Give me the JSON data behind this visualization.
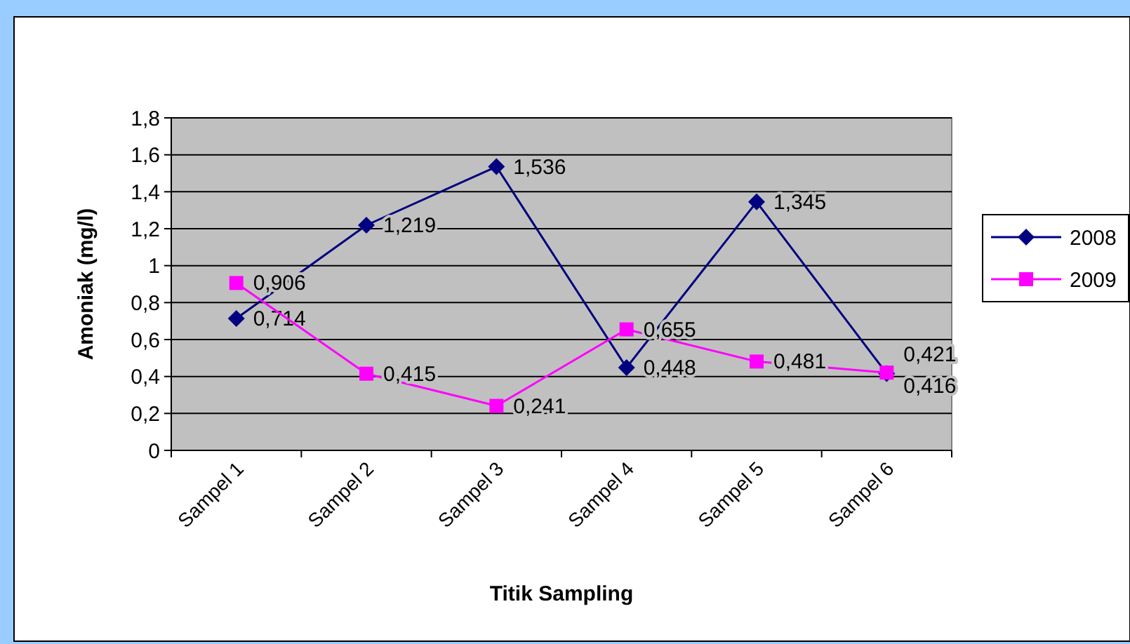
{
  "chart_data": {
    "type": "line",
    "xlabel": "Titik Sampling",
    "ylabel": "Amoniak (mg/l)",
    "categories": [
      "Sampel 1",
      "Sampel 2",
      "Sampel 3",
      "Sampel 4",
      "Sampel 5",
      "Sampel 6"
    ],
    "series": [
      {
        "name": "2008",
        "color": "#000080",
        "marker": "diamond",
        "values": [
          0.714,
          1.219,
          1.536,
          0.448,
          1.345,
          0.416
        ],
        "value_labels": [
          "0,714",
          "1,219",
          "1,536",
          "0,448",
          "1,345",
          "0,416"
        ]
      },
      {
        "name": "2009",
        "color": "#ff00ff",
        "marker": "square",
        "values": [
          0.906,
          0.415,
          0.241,
          0.655,
          0.481,
          0.421
        ],
        "value_labels": [
          "0,906",
          "0,415",
          "0,241",
          "0,655",
          "0,481",
          "0,421"
        ]
      }
    ],
    "ylim": [
      0,
      1.8
    ],
    "yticks": [
      0,
      {
        "value": 0.2,
        "label": "0,2"
      },
      {
        "value": 0.4,
        "label": "0,4"
      },
      {
        "value": 0.6,
        "label": "0,6"
      },
      {
        "value": 0.8,
        "label": "0,8"
      },
      1,
      {
        "value": 1.2,
        "label": "1,2"
      },
      {
        "value": 1.4,
        "label": "1,4"
      },
      {
        "value": 1.6,
        "label": "1,6"
      },
      {
        "value": 1.8,
        "label": "1,8"
      }
    ],
    "grid": "y",
    "legend": "right"
  }
}
